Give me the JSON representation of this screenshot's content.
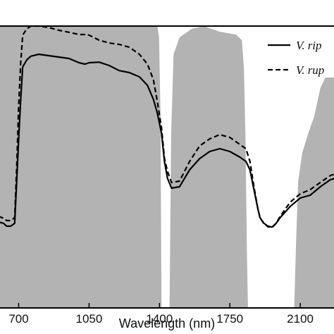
{
  "chart_data": {
    "type": "line",
    "xlabel": "Wavelength (nm)",
    "ylabel": "",
    "title": "",
    "xlim": [
      600,
      2275
    ],
    "ylim": [
      0,
      1
    ],
    "x_ticks": [
      700,
      1050,
      1400,
      1750,
      2100
    ],
    "x_tick_labels": [
      "700",
      "1050",
      "1400",
      "1750",
      "2100"
    ],
    "grid": false,
    "legend": {
      "placement": "top-right"
    },
    "shaded_bands": {
      "color": "#b3b3b3",
      "regions": [
        {
          "x": [
            600,
            640,
            650,
            660,
            1390,
            1398,
            1405,
            1410
          ],
          "y": [
            1.0,
            1.0,
            1.0,
            1.0,
            1.0,
            0.96,
            0.7,
            0.0
          ]
        },
        {
          "x": [
            1450,
            1458,
            1470,
            1500,
            1560,
            1620,
            1700,
            1780,
            1810,
            1820,
            1828,
            1835,
            1840
          ],
          "y": [
            0.0,
            0.62,
            0.9,
            0.96,
            0.99,
            1.0,
            0.98,
            0.97,
            0.95,
            0.85,
            0.6,
            0.2,
            0.0
          ]
        },
        {
          "x": [
            2070,
            2080,
            2090,
            2110,
            2140,
            2170,
            2200,
            2240,
            2275
          ],
          "y": [
            0.0,
            0.25,
            0.45,
            0.55,
            0.62,
            0.68,
            0.78,
            0.84,
            0.86
          ]
        }
      ]
    },
    "series": [
      {
        "name": "V. rip",
        "style": "solid",
        "color": "#000000",
        "x": [
          600,
          625,
          640,
          660,
          680,
          690,
          700,
          710,
          720,
          740,
          760,
          800,
          850,
          900,
          950,
          1000,
          1030,
          1050,
          1100,
          1150,
          1200,
          1250,
          1300,
          1340,
          1370,
          1390,
          1410,
          1425,
          1440,
          1460,
          1500,
          1550,
          1600,
          1650,
          1700,
          1750,
          1800,
          1830,
          1850,
          1870,
          1890,
          1900,
          1920,
          1940,
          1960,
          1980,
          2000,
          2050,
          2100,
          2150,
          2200,
          2250,
          2275
        ],
        "y": [
          0.305,
          0.3,
          0.29,
          0.29,
          0.3,
          0.45,
          0.6,
          0.74,
          0.855,
          0.88,
          0.893,
          0.9,
          0.895,
          0.89,
          0.885,
          0.87,
          0.865,
          0.87,
          0.872,
          0.86,
          0.842,
          0.835,
          0.82,
          0.79,
          0.74,
          0.69,
          0.62,
          0.52,
          0.46,
          0.425,
          0.43,
          0.49,
          0.53,
          0.555,
          0.565,
          0.555,
          0.535,
          0.52,
          0.49,
          0.42,
          0.35,
          0.32,
          0.3,
          0.29,
          0.287,
          0.3,
          0.32,
          0.36,
          0.39,
          0.4,
          0.43,
          0.455,
          0.46
        ]
      },
      {
        "name": "V. rup",
        "style": "dashed",
        "color": "#000000",
        "x": [
          600,
          625,
          640,
          660,
          680,
          690,
          700,
          710,
          720,
          740,
          760,
          800,
          850,
          900,
          950,
          1000,
          1030,
          1050,
          1100,
          1150,
          1200,
          1250,
          1300,
          1340,
          1370,
          1390,
          1410,
          1425,
          1440,
          1460,
          1500,
          1550,
          1600,
          1650,
          1700,
          1750,
          1800,
          1830,
          1850,
          1870,
          1890,
          1900,
          1920,
          1940,
          1960,
          1980,
          2000,
          2050,
          2100,
          2150,
          2200,
          2250,
          2275
        ],
        "y": [
          0.325,
          0.318,
          0.31,
          0.31,
          0.32,
          0.5,
          0.72,
          0.87,
          0.968,
          0.99,
          1.0,
          1.0,
          0.995,
          0.985,
          0.978,
          0.97,
          0.97,
          0.968,
          0.95,
          0.94,
          0.935,
          0.925,
          0.9,
          0.865,
          0.81,
          0.73,
          0.64,
          0.53,
          0.485,
          0.445,
          0.45,
          0.52,
          0.575,
          0.6,
          0.615,
          0.605,
          0.58,
          0.565,
          0.52,
          0.43,
          0.35,
          0.32,
          0.298,
          0.288,
          0.285,
          0.3,
          0.325,
          0.375,
          0.405,
          0.42,
          0.445,
          0.47,
          0.475
        ]
      }
    ]
  }
}
